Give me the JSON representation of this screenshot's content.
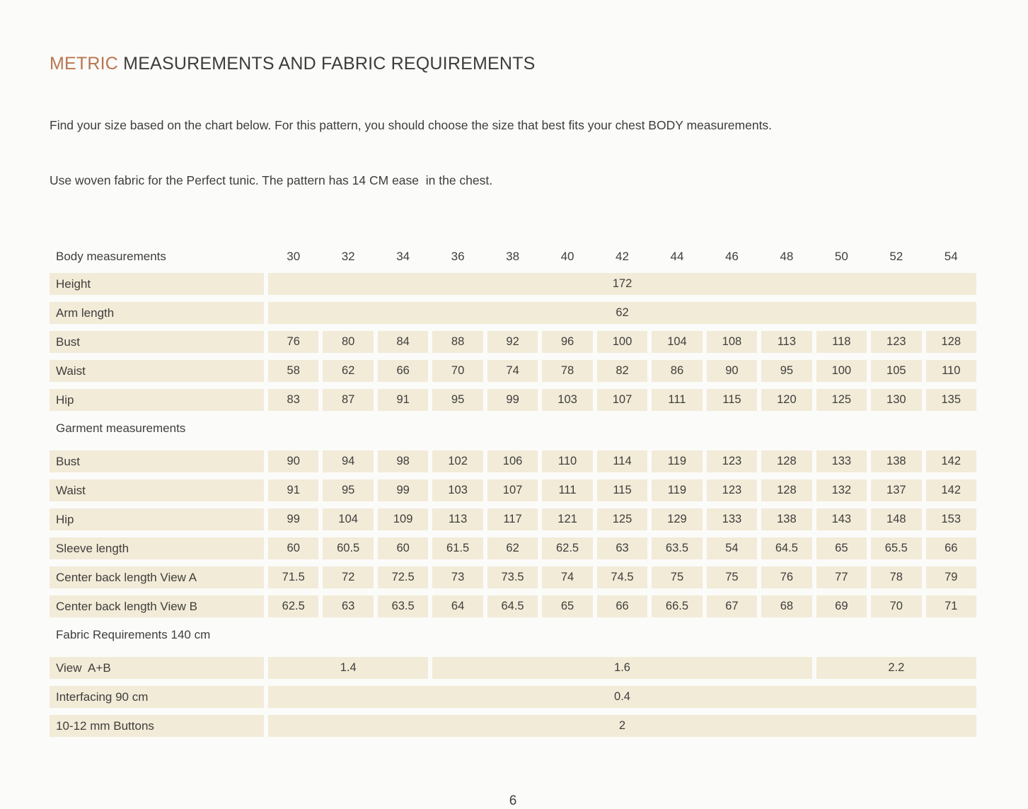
{
  "page": {
    "title_accent": "METRIC",
    "title_rest": " MEASUREMENTS AND FABRIC REQUIREMENTS",
    "intro_line1": "Find your size based on the chart below. For this pattern, you should choose the size that best fits your chest BODY measurements.",
    "intro_line2": "Use woven fabric for the Perfect tunic. The pattern has 14 CM ease  in the chest.",
    "page_number": "6"
  },
  "colors": {
    "accent": "#b8764f",
    "cell_background": "#f2ebd8",
    "text": "#3f3e3c"
  },
  "table": {
    "sizes": [
      "30",
      "32",
      "34",
      "36",
      "38",
      "40",
      "42",
      "44",
      "46",
      "48",
      "50",
      "52",
      "54"
    ],
    "sections": [
      {
        "header": "Body measurements",
        "show_sizes": true,
        "rows": [
          {
            "label": "Height",
            "type": "span",
            "value": "172"
          },
          {
            "label": "Arm length",
            "type": "span",
            "value": "62"
          },
          {
            "label": "Bust",
            "type": "cells",
            "values": [
              "76",
              "80",
              "84",
              "88",
              "92",
              "96",
              "100",
              "104",
              "108",
              "113",
              "118",
              "123",
              "128"
            ]
          },
          {
            "label": "Waist",
            "type": "cells",
            "values": [
              "58",
              "62",
              "66",
              "70",
              "74",
              "78",
              "82",
              "86",
              "90",
              "95",
              "100",
              "105",
              "110"
            ]
          },
          {
            "label": "Hip",
            "type": "cells",
            "values": [
              "83",
              "87",
              "91",
              "95",
              "99",
              "103",
              "107",
              "111",
              "115",
              "120",
              "125",
              "130",
              "135"
            ]
          }
        ]
      },
      {
        "header": "Garment measurements",
        "show_sizes": false,
        "rows": [
          {
            "label": "Bust",
            "type": "cells",
            "values": [
              "90",
              "94",
              "98",
              "102",
              "106",
              "110",
              "114",
              "119",
              "123",
              "128",
              "133",
              "138",
              "142"
            ]
          },
          {
            "label": "Waist",
            "type": "cells",
            "values": [
              "91",
              "95",
              "99",
              "103",
              "107",
              "111",
              "115",
              "119",
              "123",
              "128",
              "132",
              "137",
              "142"
            ]
          },
          {
            "label": "Hip",
            "type": "cells",
            "values": [
              "99",
              "104",
              "109",
              "113",
              "117",
              "121",
              "125",
              "129",
              "133",
              "138",
              "143",
              "148",
              "153"
            ]
          },
          {
            "label": "Sleeve length",
            "type": "cells",
            "values": [
              "60",
              "60.5",
              "60",
              "61.5",
              "62",
              "62.5",
              "63",
              "63.5",
              "54",
              "64.5",
              "65",
              "65.5",
              "66"
            ]
          },
          {
            "label": "Center back length View A",
            "type": "cells",
            "values": [
              "71.5",
              "72",
              "72.5",
              "73",
              "73.5",
              "74",
              "74.5",
              "75",
              "75",
              "76",
              "77",
              "78",
              "79"
            ]
          },
          {
            "label": "Center back length View B",
            "type": "cells",
            "values": [
              "62.5",
              "63",
              "63.5",
              "64",
              "64.5",
              "65",
              "66",
              "66.5",
              "67",
              "68",
              "69",
              "70",
              "71"
            ]
          }
        ]
      },
      {
        "header": "Fabric Requirements 140 cm",
        "show_sizes": false,
        "rows": [
          {
            "label": "View  A+B",
            "type": "groups",
            "groups": [
              {
                "span": 3,
                "value": "1.4"
              },
              {
                "span": 7,
                "value": "1.6"
              },
              {
                "span": 3,
                "value": "2.2"
              }
            ]
          },
          {
            "label": "Interfacing 90 cm",
            "type": "span",
            "value": "0.4"
          },
          {
            "label": "10-12 mm Buttons",
            "type": "span",
            "value": "2"
          }
        ]
      }
    ]
  }
}
